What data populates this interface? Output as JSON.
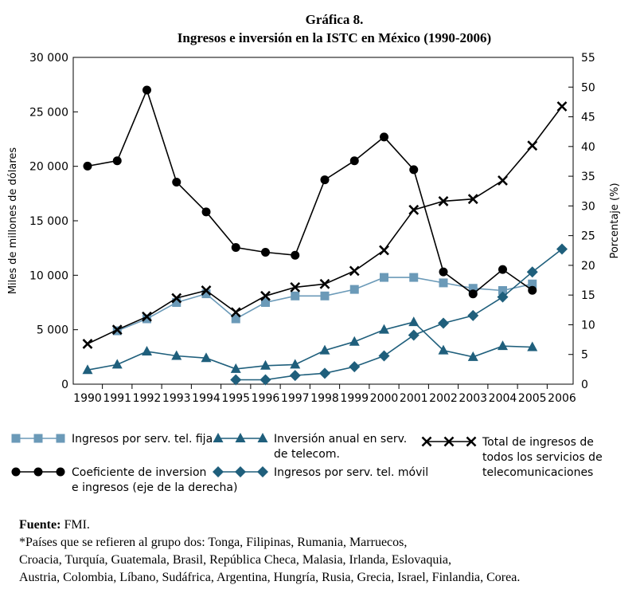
{
  "chart_data": {
    "type": "line",
    "title": "Gráfica 8.",
    "subtitle": "Ingresos e inversión en la ISTC en México  (1990-2006)",
    "ylabel": "Miles de millones de dólares",
    "y2label": "Porcentaje (%)",
    "ylim": [
      0,
      30000
    ],
    "y2lim": [
      0,
      55
    ],
    "yticks": [
      "30 000",
      "25 000",
      "20 000",
      "15 000",
      "10 000",
      "5 000",
      "0"
    ],
    "ytick_values": [
      30000,
      25000,
      20000,
      15000,
      10000,
      5000,
      0
    ],
    "y2ticks": [
      "55",
      "50",
      "45",
      "40",
      "35",
      "30",
      "25",
      "20",
      "15",
      "10",
      "5",
      "0"
    ],
    "y2tick_values": [
      55,
      50,
      45,
      40,
      35,
      30,
      25,
      20,
      15,
      10,
      5,
      0
    ],
    "categories": [
      "1990",
      "1991",
      "1992",
      "1993",
      "1994",
      "1995",
      "1996",
      "1997",
      "1998",
      "1999",
      "2000",
      "2001",
      "2002",
      "2003",
      "2004",
      "2005",
      "2006"
    ],
    "series": [
      {
        "key": "fija",
        "name": "Ingresos por serv. tel. fija",
        "color": "#6b9ab8",
        "marker": "square",
        "axis": "left",
        "values": [
          null,
          4900,
          6000,
          7500,
          8300,
          6000,
          7500,
          8100,
          8100,
          8700,
          9800,
          9800,
          9300,
          8800,
          8600,
          9200,
          null
        ]
      },
      {
        "key": "coef",
        "name": "Coeficiente de inversion e ingresos (eje de la derecha)",
        "color": "#000000",
        "marker": "circle",
        "axis": "right",
        "values": [
          36.7,
          37.6,
          49.5,
          34.0,
          29.0,
          23.0,
          22.2,
          21.7,
          34.4,
          37.6,
          41.6,
          36.1,
          18.9,
          15.2,
          19.3,
          15.8,
          null
        ]
      },
      {
        "key": "inv",
        "name": "Inversión anual en serv. de telecom.",
        "color": "#1f5f7c",
        "marker": "triangle",
        "axis": "left",
        "values": [
          1300,
          1800,
          3000,
          2600,
          2400,
          1400,
          1700,
          1800,
          3100,
          3900,
          5000,
          5700,
          3100,
          2500,
          3500,
          3400,
          null
        ]
      },
      {
        "key": "movil",
        "name": "Ingresos por serv. tel. móvil",
        "color": "#1f5f7c",
        "marker": "diamond",
        "axis": "left",
        "values": [
          null,
          null,
          null,
          null,
          null,
          400,
          400,
          800,
          1000,
          1600,
          2600,
          4500,
          5600,
          6300,
          8000,
          10300,
          12400
        ]
      },
      {
        "key": "total",
        "name": "Total de ingresos de todos los servicios de telecomunicaciones",
        "color": "#000000",
        "marker": "x",
        "axis": "left",
        "values": [
          3700,
          5000,
          6200,
          7900,
          8600,
          6600,
          8100,
          8900,
          9200,
          10400,
          12300,
          16000,
          16800,
          17000,
          18700,
          21900,
          25500
        ]
      }
    ],
    "legend": [
      {
        "key": "fija",
        "lines": [
          "Ingresos por serv. tel. fija"
        ]
      },
      {
        "key": "inv",
        "lines": [
          "Inversión anual en serv.",
          "de telecom."
        ]
      },
      {
        "key": "total",
        "lines": [
          "Total de ingresos de",
          "todos los servicios de",
          "telecomunicaciones"
        ]
      },
      {
        "key": "coef",
        "lines": [
          "Coeficiente de inversion",
          "e ingresos (eje de la derecha)"
        ]
      },
      {
        "key": "movil",
        "lines": [
          "Ingresos por serv. tel. móvil"
        ]
      }
    ],
    "legend_position": "bottom"
  },
  "footer": {
    "source_label": "Fuente:",
    "source_value": " FMI.",
    "note_line1": "*Países que se refieren al grupo dos: Tonga, Filipinas, Rumania, Marruecos,",
    "note_line2": "Croacia, Turquía, Guatemala, Brasil, República Checa, Malasia, Irlanda, Eslovaquia,",
    "note_line3": "Austria, Colombia, Líbano, Sudáfrica, Argentina, Hungría, Rusia, Grecia, Israel, Finlandia, Corea."
  }
}
